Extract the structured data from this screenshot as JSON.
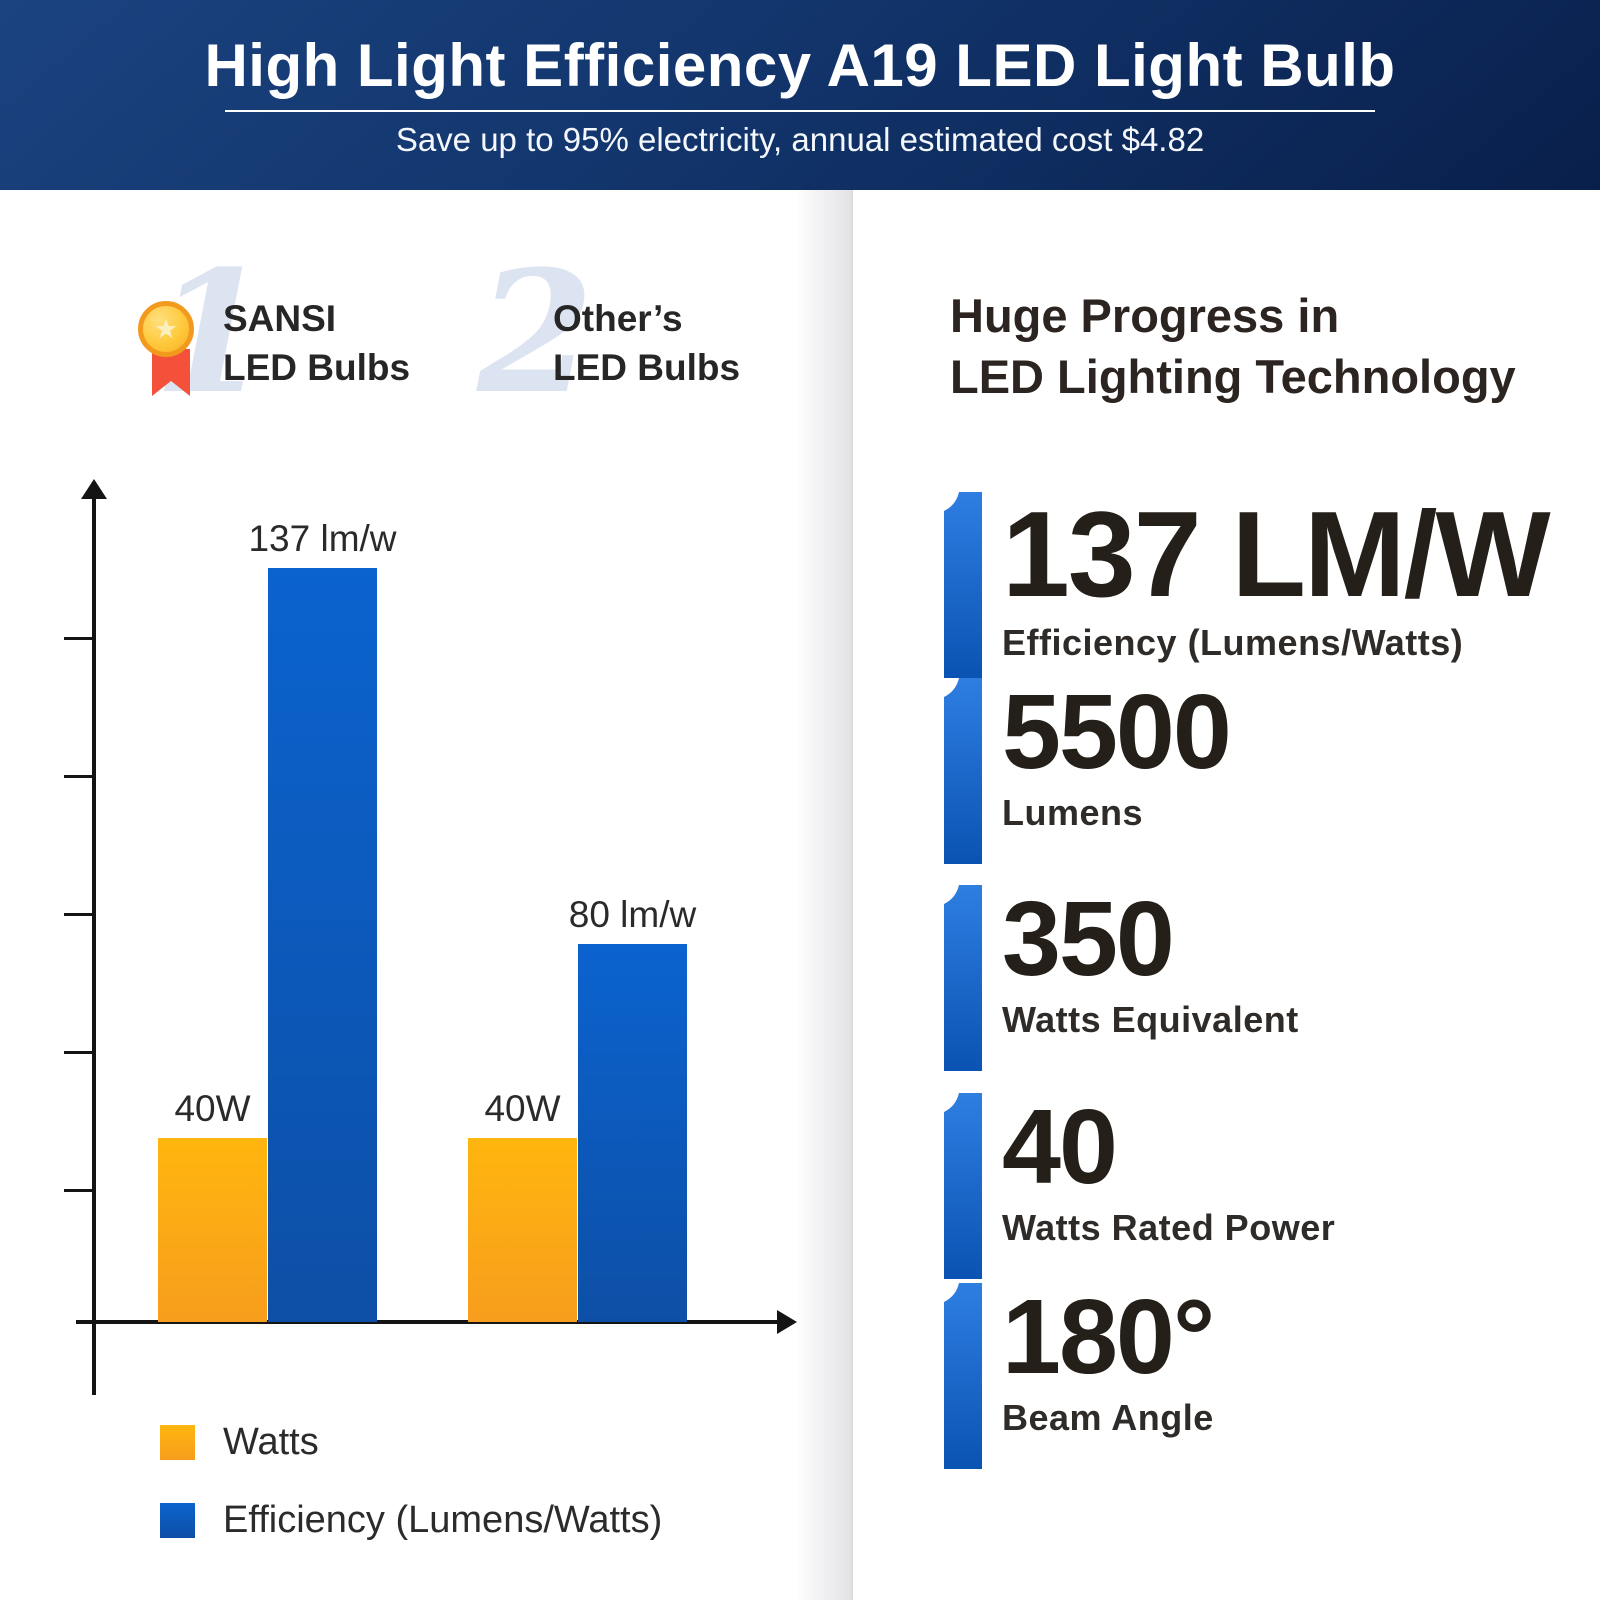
{
  "header": {
    "title": "High Light Efficiency A19 LED Light Bulb",
    "subtitle": "Save up to 95% electricity, annual estimated cost $4.82"
  },
  "comparison": {
    "items": [
      {
        "rank": "1",
        "line1": "SANSI",
        "line2": "LED Bulbs",
        "icon": "gold-medal"
      },
      {
        "rank": "2",
        "line1": "Other’s",
        "line2": "LED Bulbs"
      }
    ]
  },
  "chart_data": {
    "type": "bar",
    "categories": [
      "SANSI LED Bulbs",
      "Other's LED Bulbs"
    ],
    "series": [
      {
        "name": "Watts",
        "values": [
          40,
          40
        ],
        "labels": [
          "40W",
          "40W"
        ],
        "color": "#ffb60e",
        "color2": "#f79d1d"
      },
      {
        "name": "Efficiency (Lumens/Watts)",
        "values": [
          137,
          80
        ],
        "labels": [
          "137 lm/w",
          "80 lm/w"
        ],
        "color": "#0b63cf",
        "color2": "#0d4fa6"
      }
    ],
    "legend": [
      "Watts",
      "Efficiency (Lumens/Watts)"
    ],
    "title": "",
    "xlabel": "",
    "ylabel": "",
    "axis_style": "plain arrows, 5 unlabeled ticks on y-axis, no gridlines",
    "legend_position": "below chart, left aligned"
  },
  "stats_panel": {
    "heading_line1": "Huge Progress in",
    "heading_line2": "LED Lighting Technology",
    "stats": [
      {
        "value": "137 LM/W",
        "label": "Efficiency (Lumens/Watts)"
      },
      {
        "value": "5500",
        "label": "Lumens"
      },
      {
        "value": "350",
        "label": "Watts Equivalent"
      },
      {
        "value": "40",
        "label": "Watts Rated Power"
      },
      {
        "value": "180°",
        "label": "Beam Angle"
      }
    ]
  },
  "colors": {
    "header_navy_top": "#1b4380",
    "header_navy_bottom": "#091f4b",
    "brand_blue": "#0b63cf",
    "brand_orange": "#ffb60e",
    "marker_blue_top": "#2e7ee2",
    "marker_blue_bottom": "#0a53b2",
    "numeral_gray_blue": "#dde4f1",
    "medal_gold": "#f9ac24",
    "medal_ribbon_red": "#f4503a",
    "text_dark": "#262321"
  }
}
